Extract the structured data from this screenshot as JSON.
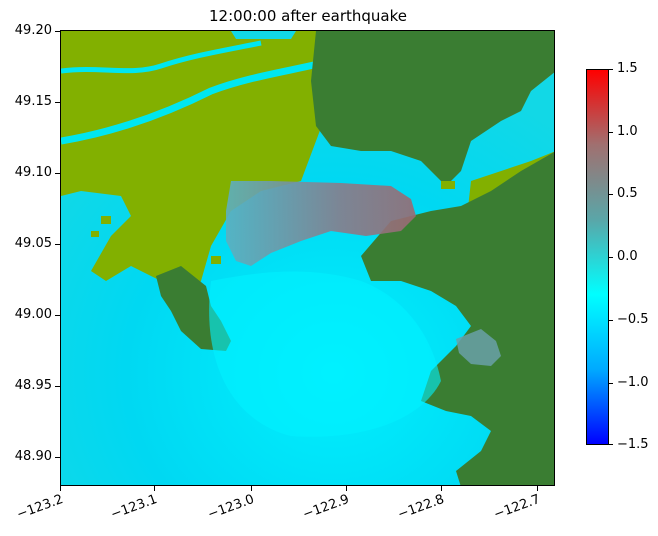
{
  "title": "12:00:00 after earthquake",
  "map": {
    "type": "heatmap",
    "x_range": [
      -123.2,
      -122.7
    ],
    "y_range": [
      48.88,
      49.2
    ],
    "x_ticks": [
      "−123.2",
      "−123.1",
      "−123.0",
      "−122.9",
      "−122.8",
      "−122.7"
    ],
    "x_tick_values": [
      -123.2,
      -123.1,
      -123.0,
      -122.9,
      -122.8,
      -122.7
    ],
    "y_ticks": [
      "49.20",
      "49.15",
      "49.10",
      "49.05",
      "49.00",
      "48.95",
      "48.90"
    ],
    "y_tick_values": [
      49.2,
      49.15,
      49.1,
      49.05,
      49.0,
      48.95,
      48.9
    ],
    "colors": {
      "water": "#00e6f0",
      "lowland": "#82b000",
      "upland": "#3a7d32",
      "inundation": "#8c6f78"
    }
  },
  "colorbar": {
    "range": [
      -1.5,
      1.5
    ],
    "ticks": [
      "1.5",
      "1.0",
      "0.5",
      "0.0",
      "−0.5",
      "−1.0",
      "−1.5"
    ],
    "tick_values": [
      1.5,
      1.0,
      0.5,
      0.0,
      -0.5,
      -1.0,
      -1.5
    ],
    "colors": [
      "#0000ff",
      "#00aaff",
      "#00ffff",
      "#5aa6a8",
      "#a07070",
      "#ff0000"
    ]
  }
}
